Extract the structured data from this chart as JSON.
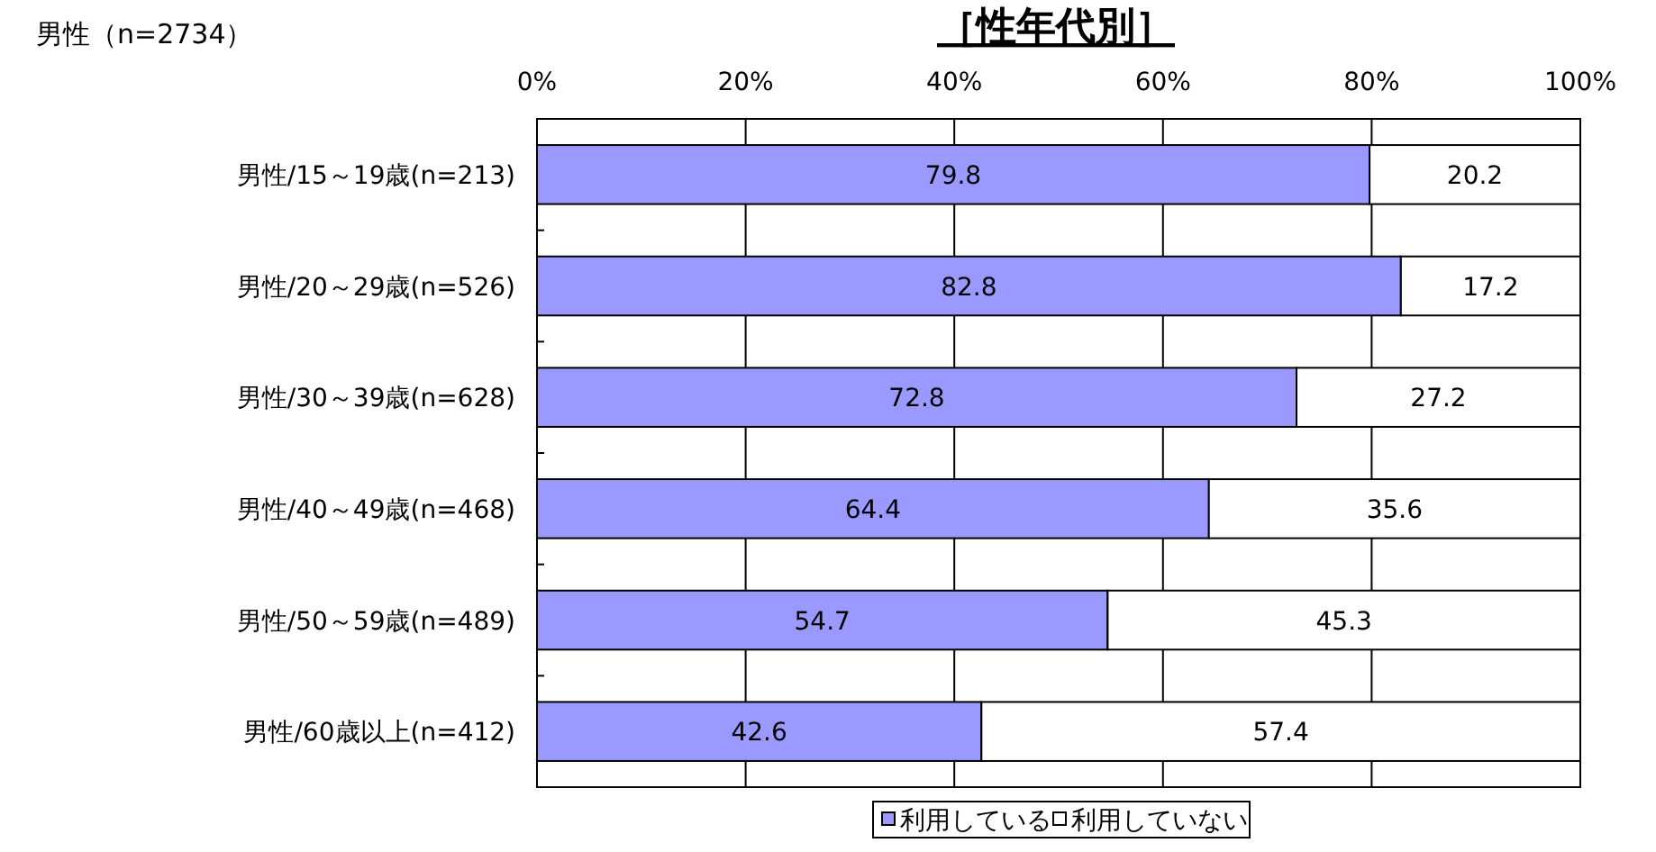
{
  "chart_data": {
    "type": "bar",
    "orientation": "horizontal",
    "stacked": true,
    "title": "［性年代別］",
    "subtitle": "男性（n=2734）",
    "categories": [
      "男性/15～19歳(n=213)",
      "男性/20～29歳(n=526)",
      "男性/30～39歳(n=628)",
      "男性/40～49歳(n=468)",
      "男性/50～59歳(n=489)",
      "男性/60歳以上(n=412)"
    ],
    "series": [
      {
        "name": "利用している",
        "color": "#9999ff",
        "values": [
          79.8,
          82.8,
          72.8,
          64.4,
          54.7,
          42.6
        ]
      },
      {
        "name": "利用していない",
        "color": "#ffffff",
        "values": [
          20.2,
          17.2,
          27.2,
          35.6,
          45.3,
          57.4
        ]
      }
    ],
    "xlim": [
      0,
      100
    ],
    "xticks": [
      {
        "value": 0,
        "label": "0%"
      },
      {
        "value": 20,
        "label": "20%"
      },
      {
        "value": 40,
        "label": "40%"
      },
      {
        "value": 60,
        "label": "60%"
      },
      {
        "value": 80,
        "label": "80%"
      },
      {
        "value": 100,
        "label": "100%"
      }
    ],
    "grid": "x",
    "data_labels": true,
    "legend": "bottom"
  }
}
